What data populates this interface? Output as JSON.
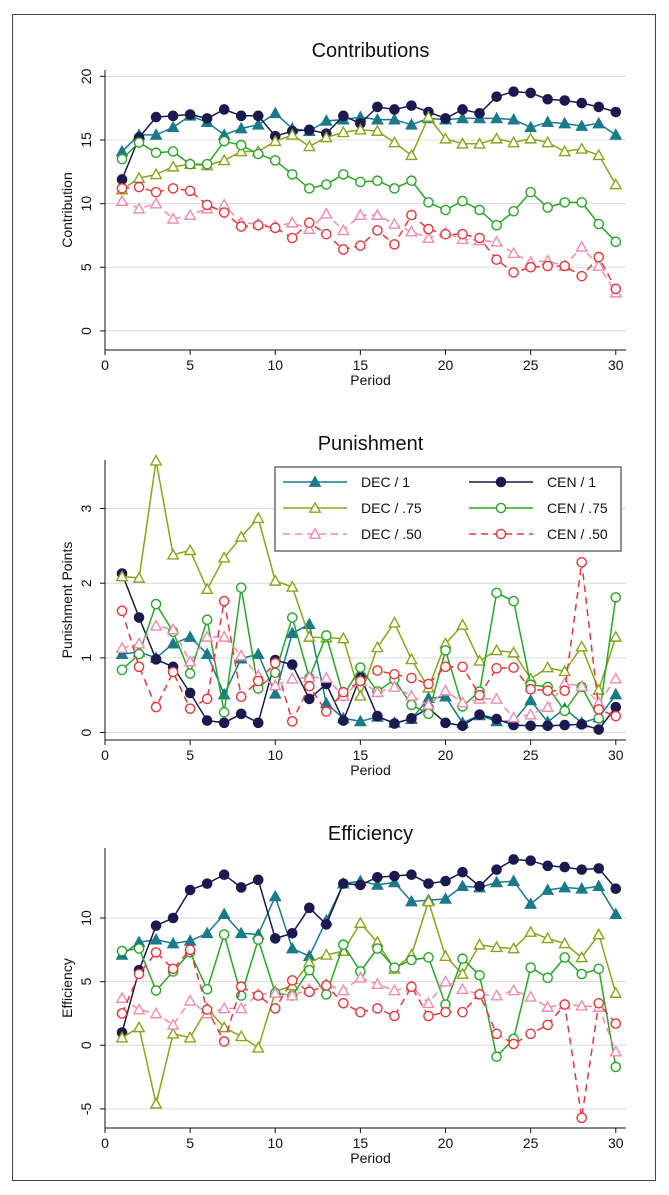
{
  "chart_data": [
    {
      "type": "line",
      "title": "Contributions",
      "xlabel": "Period",
      "ylabel": "Contribution",
      "xlim": [
        0,
        30.6
      ],
      "ylim": [
        -1.5,
        20.5
      ],
      "xticks": [
        0,
        5,
        10,
        15,
        20,
        25,
        30
      ],
      "yticks": [
        0,
        5,
        10,
        15,
        20
      ],
      "grid": true,
      "x": [
        1,
        2,
        3,
        4,
        5,
        6,
        7,
        8,
        9,
        10,
        11,
        12,
        13,
        14,
        15,
        16,
        17,
        18,
        19,
        20,
        21,
        22,
        23,
        24,
        25,
        26,
        27,
        28,
        29,
        30
      ],
      "series": [
        {
          "name": "DEC / 1",
          "values": [
            14.1,
            15.4,
            15.4,
            16.0,
            16.9,
            16.4,
            15.4,
            15.9,
            16.2,
            17.1,
            15.9,
            15.7,
            16.5,
            16.6,
            16.8,
            16.6,
            16.6,
            16.2,
            16.7,
            16.6,
            16.7,
            16.7,
            16.7,
            16.6,
            16.0,
            16.4,
            16.3,
            16.1,
            16.3,
            15.4
          ]
        },
        {
          "name": "CEN / 1",
          "values": [
            11.9,
            15.2,
            16.8,
            16.9,
            17.0,
            16.7,
            17.4,
            16.9,
            16.9,
            15.3,
            15.7,
            15.8,
            15.5,
            16.9,
            16.3,
            17.6,
            17.4,
            17.7,
            17.2,
            16.7,
            17.4,
            17.1,
            18.4,
            18.8,
            18.7,
            18.2,
            18.1,
            17.9,
            17.6,
            17.2
          ]
        },
        {
          "name": "DEC / .75",
          "values": [
            11.1,
            12.0,
            12.3,
            12.9,
            13.1,
            13.0,
            13.4,
            14.1,
            14.1,
            14.9,
            15.4,
            14.5,
            15.2,
            15.6,
            15.8,
            15.7,
            14.8,
            13.8,
            16.8,
            15.1,
            14.7,
            14.7,
            15.1,
            14.8,
            15.1,
            14.8,
            14.1,
            14.3,
            13.8,
            11.5
          ]
        },
        {
          "name": "CEN / .75",
          "values": [
            13.5,
            14.8,
            14.0,
            14.1,
            13.1,
            13.1,
            14.9,
            14.6,
            13.9,
            13.4,
            12.3,
            11.2,
            11.5,
            12.3,
            11.7,
            11.8,
            11.2,
            11.8,
            10.1,
            9.5,
            10.2,
            9.5,
            8.3,
            9.4,
            10.9,
            9.7,
            10.1,
            10.1,
            8.4,
            7.0
          ]
        },
        {
          "name": "DEC / .50",
          "values": [
            10.2,
            9.6,
            10.0,
            8.8,
            9.1,
            9.6,
            9.9,
            8.5,
            8.4,
            8.2,
            8.5,
            8.0,
            9.2,
            7.9,
            9.1,
            9.1,
            8.4,
            7.8,
            7.3,
            7.7,
            7.2,
            7.1,
            7.0,
            6.1,
            5.4,
            5.5,
            5.1,
            6.6,
            5.1,
            3.0
          ]
        },
        {
          "name": "CEN / .50",
          "values": [
            11.2,
            11.3,
            10.9,
            11.2,
            11.0,
            9.9,
            9.3,
            8.2,
            8.3,
            8.1,
            7.3,
            8.5,
            7.6,
            6.4,
            6.7,
            7.9,
            6.8,
            9.1,
            8.0,
            7.6,
            7.6,
            7.3,
            5.6,
            4.6,
            5.0,
            5.1,
            5.1,
            4.3,
            5.8,
            3.3
          ]
        }
      ]
    },
    {
      "type": "line",
      "title": "Punishment",
      "xlabel": "Period",
      "ylabel": "Punishment Points",
      "xlim": [
        0,
        30.6
      ],
      "ylim": [
        -0.1,
        3.65
      ],
      "xticks": [
        0,
        5,
        10,
        15,
        20,
        25,
        30
      ],
      "yticks": [
        0,
        1,
        2,
        3
      ],
      "grid": true,
      "legend": "top-right",
      "x": [
        1,
        2,
        3,
        4,
        5,
        6,
        7,
        8,
        9,
        10,
        11,
        12,
        13,
        14,
        15,
        16,
        17,
        18,
        19,
        20,
        21,
        22,
        23,
        24,
        25,
        26,
        27,
        28,
        29,
        30
      ],
      "series": [
        {
          "name": "DEC / 1",
          "values": [
            1.05,
            1.08,
            1.0,
            1.19,
            1.28,
            1.05,
            0.51,
            0.99,
            1.05,
            0.52,
            1.33,
            1.45,
            0.39,
            0.19,
            0.15,
            0.21,
            0.13,
            0.18,
            0.46,
            0.48,
            0.13,
            0.23,
            0.15,
            0.15,
            0.43,
            0.14,
            0.32,
            0.13,
            0.2,
            0.51
          ]
        },
        {
          "name": "CEN / 1",
          "values": [
            2.13,
            1.54,
            0.98,
            0.88,
            0.53,
            0.16,
            0.13,
            0.25,
            0.13,
            0.97,
            0.91,
            0.45,
            0.65,
            0.16,
            0.75,
            0.22,
            0.12,
            0.19,
            0.33,
            0.13,
            0.09,
            0.24,
            0.18,
            0.1,
            0.09,
            0.09,
            0.1,
            0.11,
            0.04,
            0.34
          ]
        },
        {
          "name": "DEC / .75",
          "values": [
            2.09,
            2.07,
            3.64,
            2.38,
            2.44,
            1.92,
            2.34,
            2.62,
            2.87,
            2.03,
            1.95,
            1.28,
            1.27,
            1.26,
            0.49,
            1.14,
            1.47,
            0.98,
            0.6,
            1.19,
            1.44,
            0.96,
            1.1,
            1.07,
            0.72,
            0.87,
            0.82,
            1.15,
            0.57,
            1.28
          ]
        },
        {
          "name": "CEN / .75",
          "values": [
            0.84,
            1.05,
            1.72,
            1.35,
            0.79,
            1.51,
            0.27,
            1.94,
            0.59,
            0.8,
            1.54,
            0.73,
            1.3,
            0.49,
            0.87,
            0.55,
            0.71,
            0.37,
            0.25,
            1.1,
            0.35,
            0.55,
            1.87,
            1.76,
            0.64,
            0.61,
            0.29,
            0.61,
            0.19,
            1.81
          ]
        },
        {
          "name": "DEC / .50",
          "values": [
            1.13,
            1.19,
            1.43,
            1.38,
            0.95,
            1.28,
            1.28,
            1.03,
            0.76,
            0.63,
            0.72,
            0.74,
            0.73,
            0.49,
            0.69,
            0.54,
            0.61,
            0.49,
            0.37,
            0.56,
            0.4,
            0.45,
            0.45,
            0.2,
            0.24,
            0.34,
            0.66,
            0.62,
            0.4,
            0.72
          ]
        },
        {
          "name": "CEN / .50",
          "values": [
            1.63,
            0.88,
            0.34,
            0.81,
            0.32,
            0.45,
            1.76,
            0.48,
            0.69,
            0.93,
            0.15,
            0.62,
            0.28,
            0.54,
            0.69,
            0.83,
            0.78,
            0.73,
            0.65,
            0.88,
            0.88,
            0.5,
            0.86,
            0.87,
            0.58,
            0.56,
            0.56,
            2.28,
            0.31,
            0.22
          ]
        }
      ]
    },
    {
      "type": "line",
      "title": "Efficiency",
      "xlabel": "Period",
      "ylabel": "Efficiency",
      "xlim": [
        0,
        30.6
      ],
      "ylim": [
        -6.5,
        15.5
      ],
      "xticks": [
        0,
        5,
        10,
        15,
        20,
        25,
        30
      ],
      "yticks": [
        -5,
        0,
        5,
        10
      ],
      "grid": true,
      "x": [
        1,
        2,
        3,
        4,
        5,
        6,
        7,
        8,
        9,
        10,
        11,
        12,
        13,
        14,
        15,
        16,
        17,
        18,
        19,
        20,
        21,
        22,
        23,
        24,
        25,
        26,
        27,
        28,
        29,
        30
      ],
      "series": [
        {
          "name": "DEC / 1",
          "values": [
            7.1,
            8.1,
            8.3,
            8.0,
            8.2,
            8.8,
            10.3,
            8.8,
            8.7,
            11.7,
            7.6,
            7.0,
            9.8,
            12.7,
            12.9,
            12.6,
            12.8,
            11.3,
            11.4,
            11.5,
            12.5,
            12.4,
            12.8,
            12.9,
            11.1,
            12.2,
            12.4,
            12.3,
            12.5,
            10.3
          ]
        },
        {
          "name": "CEN / 1",
          "values": [
            1.0,
            5.9,
            9.4,
            10.0,
            12.2,
            12.7,
            13.4,
            12.4,
            13.0,
            8.4,
            8.8,
            10.8,
            9.5,
            12.7,
            12.6,
            13.2,
            13.3,
            13.4,
            12.7,
            12.9,
            13.6,
            12.5,
            13.8,
            14.6,
            14.5,
            14.1,
            14.0,
            13.8,
            13.9,
            12.3
          ]
        },
        {
          "name": "DEC / .75",
          "values": [
            0.6,
            1.4,
            -4.6,
            0.9,
            0.6,
            2.9,
            1.4,
            0.7,
            -0.2,
            4.2,
            4.7,
            6.5,
            7.1,
            7.4,
            9.6,
            8.1,
            6.0,
            7.1,
            11.3,
            7.0,
            5.6,
            7.9,
            7.7,
            7.6,
            8.9,
            8.4,
            8.0,
            6.9,
            8.7,
            4.1
          ]
        },
        {
          "name": "CEN / .75",
          "values": [
            7.4,
            7.6,
            4.3,
            5.8,
            7.3,
            4.4,
            8.7,
            3.9,
            8.3,
            4.1,
            3.9,
            5.9,
            4.0,
            7.9,
            5.8,
            7.6,
            6.1,
            6.7,
            6.9,
            3.2,
            6.8,
            5.5,
            -0.9,
            0.5,
            6.1,
            5.3,
            6.9,
            5.6,
            6.0,
            -1.7
          ]
        },
        {
          "name": "DEC / .50",
          "values": [
            3.7,
            2.8,
            2.5,
            1.6,
            3.5,
            2.5,
            2.9,
            2.9,
            4.0,
            4.1,
            3.9,
            4.4,
            4.8,
            4.3,
            5.3,
            4.8,
            4.3,
            4.6,
            3.3,
            5.0,
            4.4,
            4.0,
            3.9,
            4.3,
            3.8,
            3.0,
            3.2,
            3.1,
            3.0,
            -0.5
          ]
        },
        {
          "name": "CEN / .50",
          "values": [
            2.5,
            5.6,
            7.3,
            6.0,
            7.5,
            2.8,
            0.3,
            4.6,
            3.9,
            2.9,
            5.1,
            4.2,
            4.7,
            3.3,
            2.6,
            2.9,
            2.3,
            4.6,
            2.3,
            2.6,
            2.6,
            4.0,
            0.9,
            0.1,
            0.9,
            1.6,
            3.2,
            -5.7,
            3.3,
            1.7
          ]
        }
      ]
    }
  ],
  "series_styles": [
    {
      "name": "DEC / 1",
      "color": "#1a7a8a",
      "marker": "triangle",
      "filled": true,
      "dash": false
    },
    {
      "name": "CEN / 1",
      "color": "#1a1a4e",
      "marker": "circle",
      "filled": true,
      "dash": false
    },
    {
      "name": "DEC / .75",
      "color": "#8aa41e",
      "marker": "triangle",
      "filled": false,
      "dash": false
    },
    {
      "name": "CEN / .75",
      "color": "#2aa52a",
      "marker": "circle",
      "filled": false,
      "dash": false
    },
    {
      "name": "DEC / .50",
      "color": "#f08caa",
      "marker": "triangle",
      "filled": false,
      "dash": true
    },
    {
      "name": "CEN / .50",
      "color": "#e5383b",
      "marker": "circle",
      "filled": false,
      "dash": true
    }
  ],
  "colors": {
    "background": "#ffffff",
    "grid": "#dcdcdc",
    "axis": "#111111",
    "frame": "#444444"
  }
}
